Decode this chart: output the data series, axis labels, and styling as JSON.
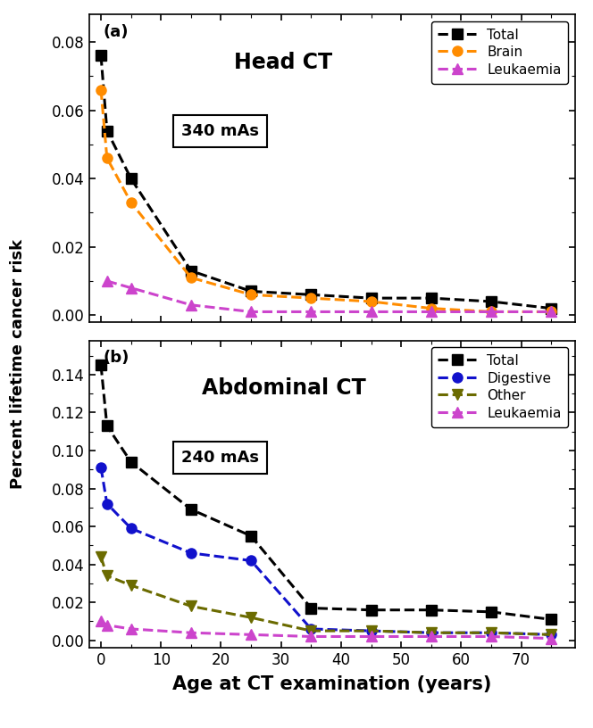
{
  "head_ct": {
    "title": "Head CT",
    "mAs": "340 mAs",
    "label": "(a)",
    "x": [
      0,
      1,
      5,
      15,
      25,
      35,
      45,
      55,
      65,
      75
    ],
    "total": [
      0.076,
      0.054,
      0.04,
      0.013,
      0.007,
      0.006,
      0.005,
      0.005,
      0.004,
      0.002
    ],
    "brain": [
      0.066,
      0.046,
      0.033,
      0.011,
      0.006,
      0.005,
      0.004,
      0.002,
      0.001,
      0.001
    ],
    "leukaemia": [
      null,
      0.01,
      0.008,
      0.003,
      0.001,
      0.001,
      0.001,
      0.001,
      0.001,
      0.001
    ],
    "ylim": [
      -0.002,
      0.088
    ],
    "yticks": [
      0.0,
      0.02,
      0.04,
      0.06,
      0.08
    ],
    "series_colors": [
      "#000000",
      "#FF8C00",
      "#CC44CC"
    ],
    "series_markers": [
      "s",
      "o",
      "^"
    ],
    "series_labels": [
      "Total",
      "Brain",
      "Leukaemia"
    ],
    "series_keys": [
      "total",
      "brain",
      "leukaemia"
    ]
  },
  "abdom_ct": {
    "title": "Abdominal CT",
    "mAs": "240 mAs",
    "label": "(b)",
    "x": [
      0,
      1,
      5,
      15,
      25,
      35,
      45,
      55,
      65,
      75
    ],
    "total": [
      0.145,
      0.113,
      0.094,
      0.069,
      0.055,
      0.017,
      0.016,
      0.016,
      0.015,
      0.011
    ],
    "digestive": [
      0.091,
      0.072,
      0.059,
      0.046,
      0.042,
      0.006,
      0.005,
      0.004,
      0.004,
      0.003
    ],
    "other": [
      0.044,
      0.034,
      0.029,
      0.018,
      0.012,
      0.005,
      0.005,
      0.004,
      0.004,
      0.003
    ],
    "leukaemia": [
      0.01,
      0.008,
      0.006,
      0.004,
      0.003,
      0.002,
      0.002,
      0.002,
      0.002,
      0.001
    ],
    "ylim": [
      -0.004,
      0.158
    ],
    "yticks": [
      0.0,
      0.02,
      0.04,
      0.06,
      0.08,
      0.1,
      0.12,
      0.14
    ],
    "series_colors": [
      "#000000",
      "#1111CC",
      "#6B6B00",
      "#CC44CC"
    ],
    "series_markers": [
      "s",
      "o",
      "v",
      "^"
    ],
    "series_labels": [
      "Total",
      "Digestive",
      "Other",
      "Leukaemia"
    ],
    "series_keys": [
      "total",
      "digestive",
      "other",
      "leukaemia"
    ]
  },
  "xlabel": "Age at CT examination (years)",
  "ylabel": "Percent lifetime cancer risk",
  "xticks": [
    0,
    10,
    20,
    30,
    40,
    50,
    60,
    70
  ],
  "xlim": [
    -2,
    79
  ],
  "bg_color": "#ffffff",
  "linewidth": 2.2,
  "markersize": 8
}
